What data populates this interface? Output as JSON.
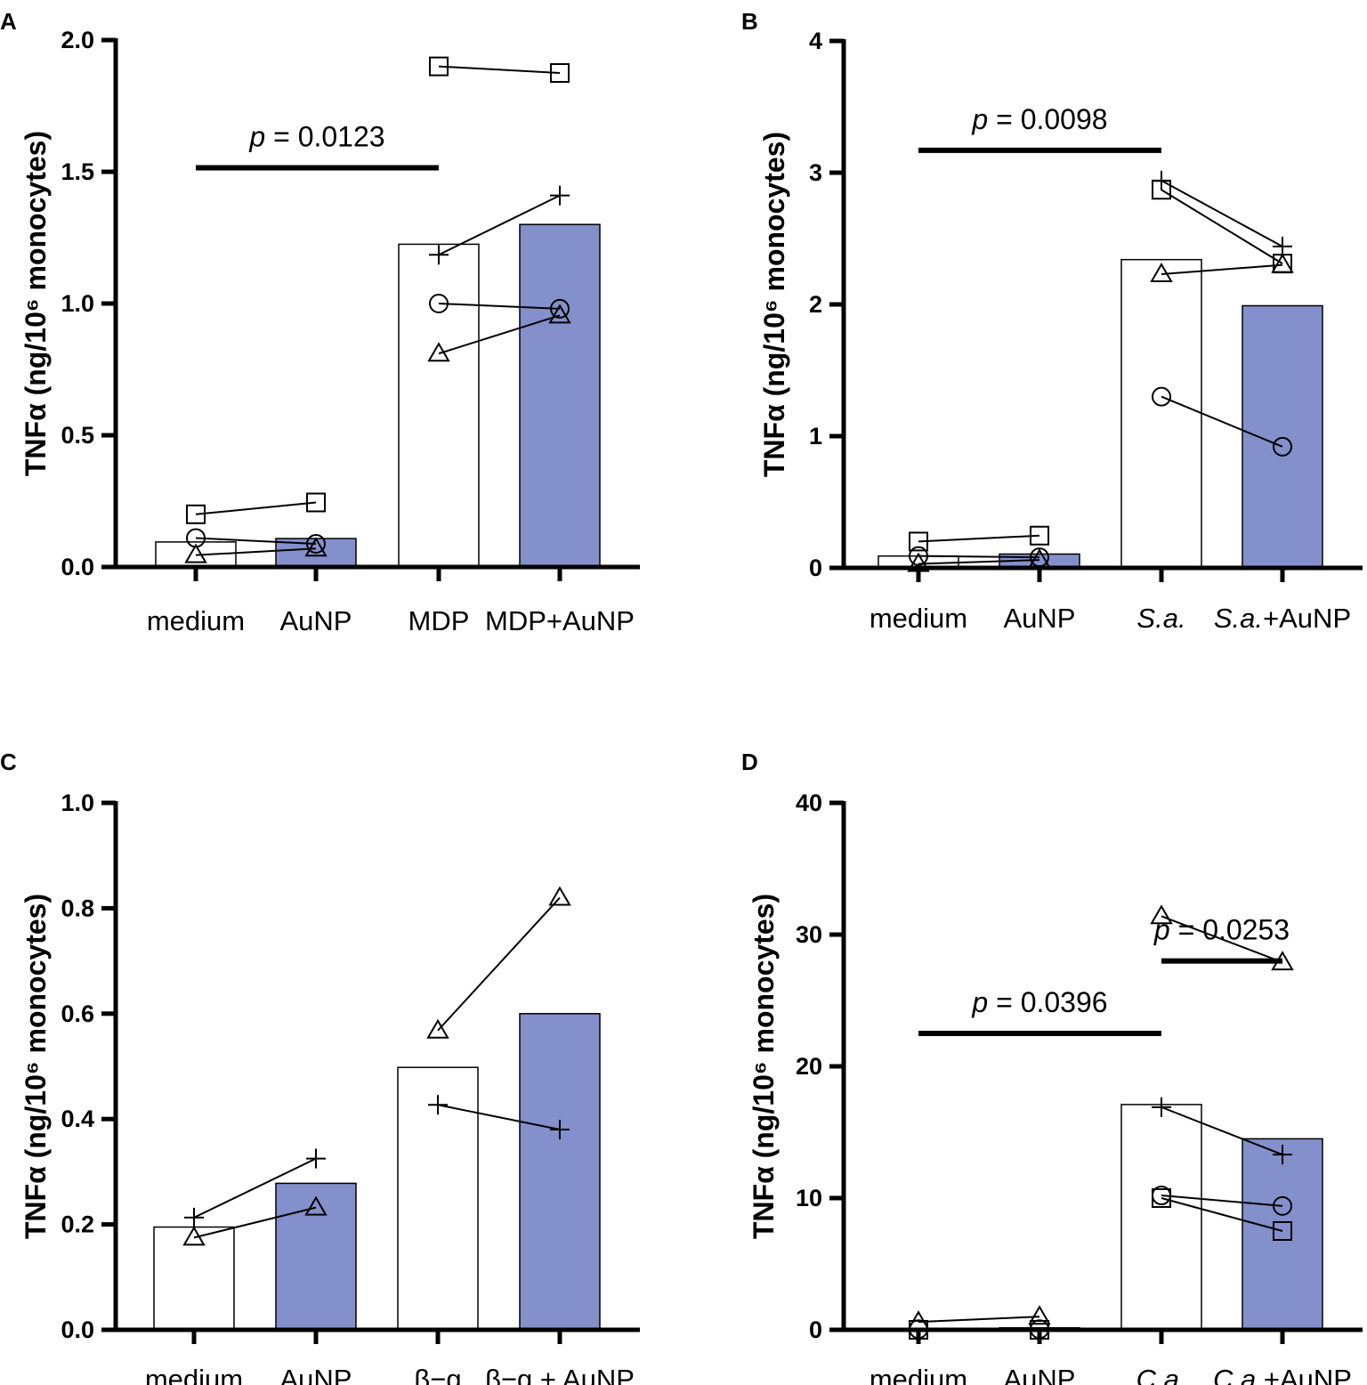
{
  "chart_data": [
    {
      "panel": "A",
      "type": "bar",
      "ylabel": "TNFα (ng/10⁶ monocytes)",
      "ylim": [
        0,
        2.0
      ],
      "yticks": [
        "0.0",
        "0.5",
        "1.0",
        "1.5",
        "2.0"
      ],
      "ytick_values": [
        0,
        0.5,
        1.0,
        1.5,
        2.0
      ],
      "categories": [
        {
          "label": "medium",
          "italic": "",
          "suffix": ""
        },
        {
          "label": "AuNP",
          "italic": "",
          "suffix": ""
        },
        {
          "label": "MDP",
          "italic": "",
          "suffix": ""
        },
        {
          "label": "MDP+AuNP",
          "italic": "",
          "suffix": ""
        }
      ],
      "bar_values": [
        0.095,
        0.108,
        1.225,
        1.3
      ],
      "bar_filled": [
        false,
        true,
        false,
        true
      ],
      "donors": [
        {
          "marker": "square",
          "values": [
            0.2,
            0.245,
            1.9,
            1.875
          ]
        },
        {
          "marker": "plus",
          "values": [
            null,
            null,
            1.185,
            1.41
          ]
        },
        {
          "marker": "circle",
          "values": [
            0.11,
            0.088,
            1.0,
            0.98
          ]
        },
        {
          "marker": "triangle",
          "values": [
            0.045,
            0.07,
            0.81,
            0.955
          ]
        }
      ],
      "significance": [
        {
          "p_prefix": "p",
          "text": " = 0.0123",
          "from": 0,
          "to": 2,
          "y": 1.515
        }
      ]
    },
    {
      "panel": "B",
      "type": "bar",
      "ylabel": "TNFα (ng/10⁶ monocytes)",
      "ylim": [
        0,
        4
      ],
      "yticks": [
        "0",
        "1",
        "2",
        "3",
        "4"
      ],
      "ytick_values": [
        0,
        1,
        2,
        3,
        4
      ],
      "categories": [
        {
          "label": "medium",
          "italic": "",
          "suffix": ""
        },
        {
          "label": "AuNP",
          "italic": "",
          "suffix": ""
        },
        {
          "label": "",
          "italic": "S.a.",
          "suffix": ""
        },
        {
          "label": "",
          "italic": "S.a.",
          "suffix": "+AuNP"
        }
      ],
      "bar_values": [
        0.09,
        0.105,
        2.34,
        1.99
      ],
      "bar_filled": [
        false,
        true,
        false,
        true
      ],
      "donors": [
        {
          "marker": "square",
          "values": [
            0.2,
            0.245,
            2.87,
            2.31
          ]
        },
        {
          "marker": "plus",
          "values": [
            null,
            null,
            2.94,
            2.44
          ]
        },
        {
          "marker": "circle",
          "values": [
            0.09,
            0.08,
            1.3,
            0.92
          ]
        },
        {
          "marker": "triangle",
          "values": [
            0.03,
            0.06,
            2.23,
            2.3
          ]
        }
      ],
      "significance": [
        {
          "p_prefix": "p",
          "text": " = 0.0098",
          "from": 0,
          "to": 2,
          "y": 3.17
        }
      ]
    },
    {
      "panel": "C",
      "type": "bar",
      "ylabel": "TNFα (ng/10⁶ monocytes)",
      "ylim": [
        0,
        1.0
      ],
      "yticks": [
        "0.0",
        "0.2",
        "0.4",
        "0.6",
        "0.8",
        "1.0"
      ],
      "ytick_values": [
        0,
        0.2,
        0.4,
        0.6,
        0.8,
        1.0
      ],
      "categories": [
        {
          "label": "medium",
          "italic": "",
          "suffix": ""
        },
        {
          "label": "AuNP",
          "italic": "",
          "suffix": ""
        },
        {
          "label": "β−g",
          "italic": "",
          "suffix": ""
        },
        {
          "label": "β−g + AuNP",
          "italic": "",
          "suffix": ""
        }
      ],
      "bar_values": [
        0.195,
        0.278,
        0.498,
        0.6
      ],
      "bar_filled": [
        false,
        true,
        false,
        true
      ],
      "donors": [
        {
          "marker": "plus",
          "values": [
            0.213,
            0.325,
            0.427,
            0.38
          ]
        },
        {
          "marker": "triangle",
          "values": [
            0.175,
            0.232,
            0.568,
            0.82
          ]
        }
      ],
      "significance": []
    },
    {
      "panel": "D",
      "type": "bar",
      "ylabel": "TNFα (ng/10⁶ monocytes)",
      "ylim": [
        0,
        40
      ],
      "yticks": [
        "0",
        "10",
        "20",
        "30",
        "40"
      ],
      "ytick_values": [
        0,
        10,
        20,
        30,
        40
      ],
      "categories": [
        {
          "label": "medium",
          "italic": "",
          "suffix": ""
        },
        {
          "label": "AuNP",
          "italic": "",
          "suffix": ""
        },
        {
          "label": "",
          "italic": "C.a.",
          "suffix": ""
        },
        {
          "label": "",
          "italic": "C.a.",
          "suffix": "+AuNP"
        }
      ],
      "bar_values": [
        0.1,
        0.15,
        17.1,
        14.5
      ],
      "bar_filled": [
        false,
        true,
        false,
        true
      ],
      "donors": [
        {
          "marker": "triangle",
          "values": [
            0.6,
            1.0,
            31.4,
            27.9
          ]
        },
        {
          "marker": "plus",
          "values": [
            null,
            null,
            16.9,
            13.3
          ]
        },
        {
          "marker": "circle",
          "values": [
            0.05,
            0.05,
            10.2,
            9.4
          ]
        },
        {
          "marker": "square",
          "values": [
            0.0,
            0.0,
            10.0,
            7.5
          ]
        }
      ],
      "significance": [
        {
          "p_prefix": "p",
          "text": " = 0.0396",
          "from": 0,
          "to": 2,
          "y": 22.5
        },
        {
          "p_prefix": "p",
          "text": " =  0.0253",
          "from": 2,
          "to": 3,
          "y": 28.0
        }
      ]
    }
  ]
}
